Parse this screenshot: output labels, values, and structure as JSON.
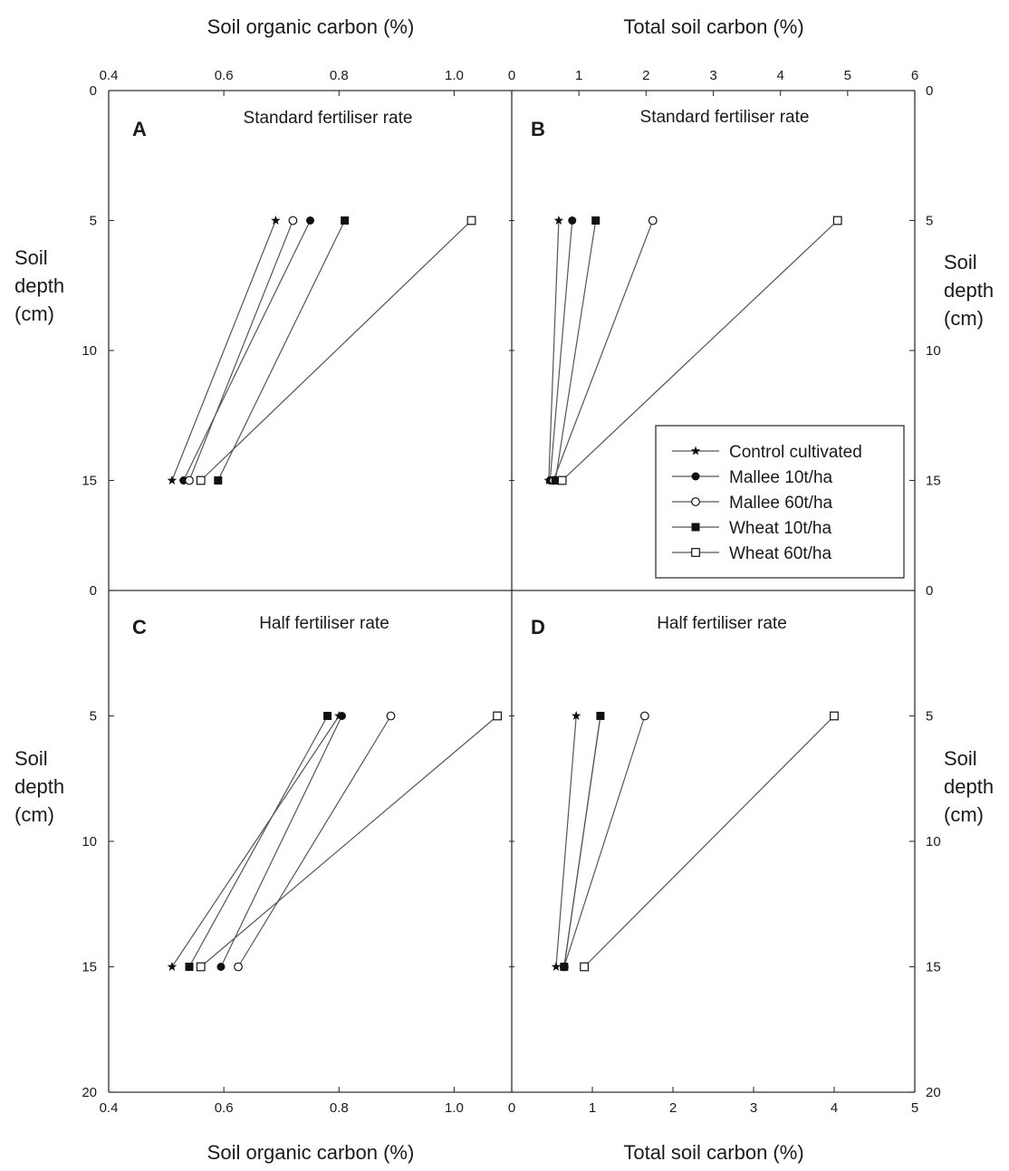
{
  "chart_data": [
    {
      "type": "line",
      "panel": "A",
      "title": "Standard fertiliser rate",
      "xlabel": "Soil organic carbon (%)",
      "ylabel": "Soil depth (cm)",
      "xlim": [
        0.4,
        1.1
      ],
      "ylim": [
        0,
        20
      ],
      "xticks": [
        "0.4",
        "0.6",
        "0.8",
        "1.0"
      ],
      "yticks": [
        "0",
        "5",
        "10",
        "15"
      ],
      "y_inverted": true,
      "series": [
        {
          "name": "Control cultivated",
          "marker": "star",
          "points": [
            {
              "x": 0.69,
              "y": 5
            },
            {
              "x": 0.51,
              "y": 15
            }
          ]
        },
        {
          "name": "Mallee 10t/ha",
          "marker": "filled-circle",
          "points": [
            {
              "x": 0.75,
              "y": 5
            },
            {
              "x": 0.53,
              "y": 15
            }
          ]
        },
        {
          "name": "Mallee 60t/ha",
          "marker": "open-circle",
          "points": [
            {
              "x": 0.72,
              "y": 5
            },
            {
              "x": 0.54,
              "y": 15
            }
          ]
        },
        {
          "name": "Wheat 10t/ha",
          "marker": "filled-square",
          "points": [
            {
              "x": 0.81,
              "y": 5
            },
            {
              "x": 0.59,
              "y": 15
            }
          ]
        },
        {
          "name": "Wheat 60t/ha",
          "marker": "open-square",
          "points": [
            {
              "x": 1.03,
              "y": 5
            },
            {
              "x": 0.56,
              "y": 15
            }
          ]
        }
      ]
    },
    {
      "type": "line",
      "panel": "B",
      "title": "Standard fertiliser rate",
      "xlabel": "Total soil carbon (%)",
      "ylabel": "Soil depth (cm)",
      "xlim": [
        0,
        6
      ],
      "ylim": [
        0,
        20
      ],
      "xticks": [
        "0",
        "1",
        "2",
        "3",
        "4",
        "5",
        "6"
      ],
      "yticks": [
        "0",
        "5",
        "10",
        "15"
      ],
      "y_inverted": true,
      "series": [
        {
          "name": "Control cultivated",
          "marker": "star",
          "points": [
            {
              "x": 0.7,
              "y": 5
            },
            {
              "x": 0.55,
              "y": 15
            }
          ]
        },
        {
          "name": "Mallee 10t/ha",
          "marker": "filled-circle",
          "points": [
            {
              "x": 0.9,
              "y": 5
            },
            {
              "x": 0.57,
              "y": 15
            }
          ]
        },
        {
          "name": "Mallee 60t/ha",
          "marker": "open-circle",
          "points": [
            {
              "x": 2.1,
              "y": 5
            },
            {
              "x": 0.62,
              "y": 15
            }
          ]
        },
        {
          "name": "Wheat 10t/ha",
          "marker": "filled-square",
          "points": [
            {
              "x": 1.25,
              "y": 5
            },
            {
              "x": 0.65,
              "y": 15
            }
          ]
        },
        {
          "name": "Wheat 60t/ha",
          "marker": "open-square",
          "points": [
            {
              "x": 4.85,
              "y": 5
            },
            {
              "x": 0.75,
              "y": 15
            }
          ]
        }
      ]
    },
    {
      "type": "line",
      "panel": "C",
      "title": "Half fertiliser rate",
      "xlabel": "Soil organic carbon (%)",
      "ylabel": "Soil depth (cm)",
      "xlim": [
        0.4,
        1.1
      ],
      "ylim": [
        0,
        20
      ],
      "xticks": [
        "0.4",
        "0.6",
        "0.8",
        "1.0"
      ],
      "yticks": [
        "0",
        "5",
        "10",
        "15",
        "20"
      ],
      "y_inverted": true,
      "series": [
        {
          "name": "Control cultivated",
          "marker": "star",
          "points": [
            {
              "x": 0.8,
              "y": 5
            },
            {
              "x": 0.51,
              "y": 15
            }
          ]
        },
        {
          "name": "Mallee 10t/ha",
          "marker": "filled-circle",
          "points": [
            {
              "x": 0.805,
              "y": 5
            },
            {
              "x": 0.595,
              "y": 15
            }
          ]
        },
        {
          "name": "Mallee 60t/ha",
          "marker": "open-circle",
          "points": [
            {
              "x": 0.89,
              "y": 5
            },
            {
              "x": 0.625,
              "y": 15
            }
          ]
        },
        {
          "name": "Wheat 10t/ha",
          "marker": "filled-square",
          "points": [
            {
              "x": 0.78,
              "y": 5
            },
            {
              "x": 0.54,
              "y": 15
            }
          ]
        },
        {
          "name": "Wheat 60t/ha",
          "marker": "open-square",
          "points": [
            {
              "x": 1.075,
              "y": 5
            },
            {
              "x": 0.56,
              "y": 15
            }
          ]
        }
      ]
    },
    {
      "type": "line",
      "panel": "D",
      "title": "Half fertiliser rate",
      "xlabel": "Total soil carbon (%)",
      "ylabel": "Soil depth (cm)",
      "xlim": [
        0,
        5
      ],
      "ylim": [
        0,
        20
      ],
      "xticks": [
        "0",
        "1",
        "2",
        "3",
        "4",
        "5"
      ],
      "yticks": [
        "0",
        "5",
        "10",
        "15",
        "20"
      ],
      "y_inverted": true,
      "series": [
        {
          "name": "Control cultivated",
          "marker": "star",
          "points": [
            {
              "x": 0.8,
              "y": 5
            },
            {
              "x": 0.55,
              "y": 15
            }
          ]
        },
        {
          "name": "Mallee 10t/ha",
          "marker": "filled-circle",
          "points": [
            {
              "x": 1.1,
              "y": 5
            },
            {
              "x": 0.65,
              "y": 15
            }
          ]
        },
        {
          "name": "Mallee 60t/ha",
          "marker": "open-circle",
          "points": [
            {
              "x": 1.65,
              "y": 5
            },
            {
              "x": 0.65,
              "y": 15
            }
          ]
        },
        {
          "name": "Wheat 10t/ha",
          "marker": "filled-square",
          "points": [
            {
              "x": 1.1,
              "y": 5
            },
            {
              "x": 0.65,
              "y": 15
            }
          ]
        },
        {
          "name": "Wheat 60t/ha",
          "marker": "open-square",
          "points": [
            {
              "x": 4.0,
              "y": 5
            },
            {
              "x": 0.9,
              "y": 15
            }
          ]
        }
      ]
    }
  ],
  "labels": {
    "top_left_axis": "Soil organic carbon (%)",
    "top_right_axis": "Total soil carbon (%)",
    "bottom_left_axis": "Soil organic carbon (%)",
    "bottom_right_axis": "Total soil carbon (%)",
    "depth_line1": "Soil",
    "depth_line2": "depth",
    "depth_line3": "(cm)"
  },
  "legend": {
    "placement": "inside panel B, lower-right",
    "items": [
      {
        "label": "Control cultivated",
        "marker": "star"
      },
      {
        "label": "Mallee 10t/ha",
        "marker": "filled-circle"
      },
      {
        "label": "Mallee 60t/ha",
        "marker": "open-circle"
      },
      {
        "label": "Wheat 10t/ha",
        "marker": "filled-square"
      },
      {
        "label": "Wheat 60t/ha",
        "marker": "open-square"
      }
    ]
  },
  "colors": {
    "line": "#555555",
    "frame": "#333333",
    "marker": "#111111"
  }
}
